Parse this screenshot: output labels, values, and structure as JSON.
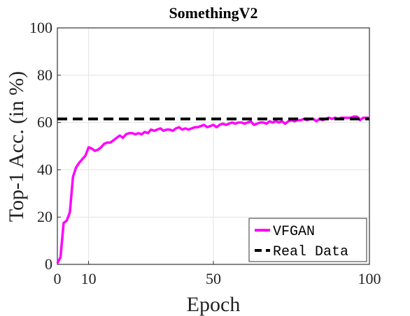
{
  "chart_data": {
    "type": "line",
    "title": "SomethingV2",
    "xlabel": "Epoch",
    "ylabel": "Top-1 Acc. (in %)",
    "xlim": [
      0,
      100
    ],
    "ylim": [
      0,
      100
    ],
    "xticks": [
      0,
      10,
      50,
      100
    ],
    "yticks": [
      0,
      20,
      40,
      60,
      80,
      100
    ],
    "grid": true,
    "legend_position": "bottom-right",
    "series": [
      {
        "name": "VFGAN",
        "color": "#ff00ff",
        "style": "solid",
        "x": [
          0,
          1,
          2,
          3,
          4,
          5,
          6,
          7,
          8,
          9,
          10,
          11,
          12,
          13,
          14,
          15,
          16,
          17,
          18,
          19,
          20,
          21,
          22,
          23,
          24,
          25,
          26,
          27,
          28,
          29,
          30,
          31,
          32,
          33,
          34,
          35,
          36,
          37,
          38,
          39,
          40,
          41,
          42,
          43,
          44,
          45,
          46,
          47,
          48,
          49,
          50,
          51,
          52,
          53,
          54,
          55,
          56,
          57,
          58,
          59,
          60,
          61,
          62,
          63,
          64,
          65,
          66,
          67,
          68,
          69,
          70,
          71,
          72,
          73,
          74,
          75,
          76,
          77,
          78,
          79,
          80,
          81,
          82,
          83,
          84,
          85,
          86,
          87,
          88,
          89,
          90,
          91,
          92,
          93,
          94,
          95,
          96,
          97,
          98,
          99,
          100
        ],
        "y": [
          0.5,
          3,
          17.5,
          18.5,
          22,
          37,
          41,
          43,
          44.5,
          46,
          49.5,
          49,
          48,
          48.5,
          49.5,
          51,
          51.5,
          51.5,
          52.5,
          53.5,
          54.5,
          53.5,
          55,
          55.5,
          55.5,
          55,
          55.5,
          55,
          56,
          55.5,
          57,
          56.5,
          57,
          57.5,
          56.5,
          57,
          57,
          56.5,
          57.5,
          58,
          57,
          57.5,
          57,
          57.5,
          58,
          58,
          58.5,
          59,
          58,
          58.5,
          59,
          58,
          59,
          59.5,
          59,
          59.5,
          60,
          59.5,
          60,
          60,
          59.5,
          60,
          60.5,
          59,
          59.5,
          60,
          60,
          59.5,
          60.5,
          60,
          60.5,
          60,
          60.5,
          59.5,
          60.5,
          61,
          60.5,
          61,
          61,
          61.5,
          61,
          61.5,
          61.5,
          60.5,
          61.5,
          61,
          61.5,
          62,
          61.5,
          62,
          61.5,
          62,
          62,
          62,
          62,
          62.5,
          62.5,
          61,
          62,
          62,
          62
        ]
      },
      {
        "name": "Real Data",
        "color": "#000000",
        "style": "dashed",
        "x": [
          0,
          100
        ],
        "y": [
          61.5,
          61.5
        ]
      }
    ]
  }
}
